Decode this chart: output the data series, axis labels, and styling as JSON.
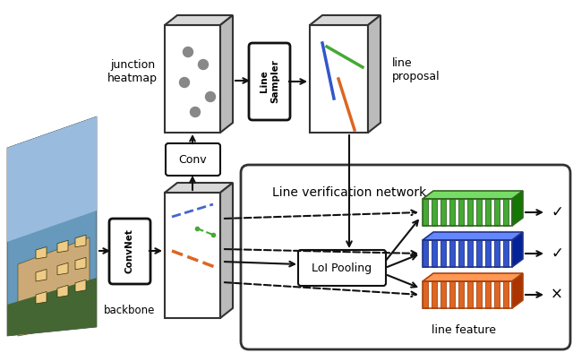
{
  "bg_color": "#ffffff",
  "text_color": "#000000",
  "green_color": "#4aaa33",
  "blue_color": "#3355cc",
  "orange_color": "#dd6622",
  "labels": {
    "junction_heatmap": "junction\nheatmap",
    "line_proposal": "line\nproposal",
    "line_sampler": "Line\nSampler",
    "conv": "Conv",
    "convnet": "ConvNet",
    "backbone": "backbone",
    "loi_pooling": "LoI Pooling",
    "line_verification": "Line verification network",
    "line_feature": "line feature",
    "check1": "✓",
    "check2": "✓",
    "cross": "×"
  }
}
